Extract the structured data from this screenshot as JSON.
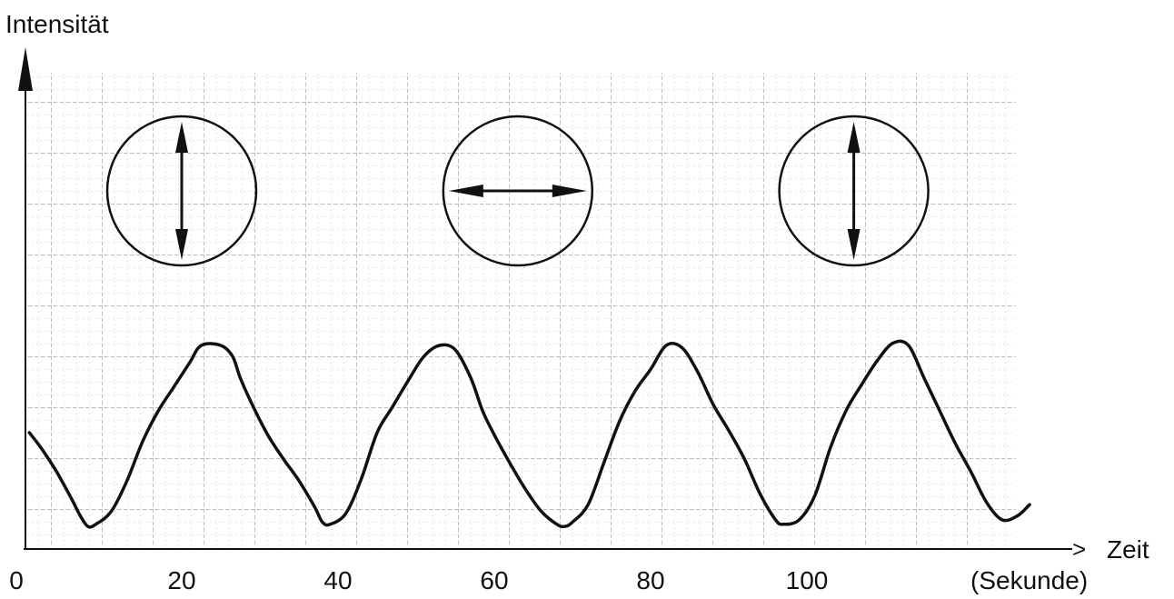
{
  "chart_data": {
    "type": "line",
    "title": "",
    "ylabel": "Intensität",
    "xlabel": "Zeit",
    "xunit": "(Sekunde)",
    "xticks": [
      0,
      20,
      40,
      60,
      80,
      100
    ],
    "xlim": [
      0,
      130
    ],
    "ylim": [
      0,
      1
    ],
    "grid": true,
    "series": [
      {
        "x": [
          0.5,
          2,
          4,
          6,
          7,
          8,
          9,
          11,
          13,
          15,
          17,
          19,
          21,
          22.5,
          25,
          26.5,
          27.5,
          29,
          31,
          33,
          35,
          37,
          38,
          39,
          41,
          43,
          45,
          47,
          49,
          51,
          53,
          55,
          57,
          58.5,
          60,
          62,
          64,
          66,
          68,
          69,
          70,
          72,
          74,
          76,
          78,
          80,
          82,
          84,
          86,
          88,
          90,
          92,
          94,
          96,
          97,
          99,
          101,
          103,
          105,
          107,
          109,
          111,
          113,
          115,
          117,
          119,
          121,
          123,
          125,
          127,
          128.5
        ],
        "y": [
          0.45,
          0.38,
          0.27,
          0.14,
          0.07,
          0.02,
          0.03,
          0.09,
          0.23,
          0.41,
          0.55,
          0.66,
          0.77,
          0.85,
          0.85,
          0.8,
          0.7,
          0.58,
          0.44,
          0.33,
          0.23,
          0.11,
          0.04,
          0.03,
          0.08,
          0.24,
          0.45,
          0.57,
          0.69,
          0.8,
          0.85,
          0.83,
          0.7,
          0.55,
          0.44,
          0.31,
          0.19,
          0.09,
          0.03,
          0.02,
          0.04,
          0.12,
          0.31,
          0.5,
          0.64,
          0.74,
          0.85,
          0.84,
          0.73,
          0.58,
          0.46,
          0.33,
          0.17,
          0.05,
          0.03,
          0.05,
          0.16,
          0.38,
          0.55,
          0.67,
          0.78,
          0.86,
          0.85,
          0.7,
          0.55,
          0.4,
          0.27,
          0.13,
          0.05,
          0.07,
          0.12
        ]
      }
    ],
    "annotations": [
      {
        "type": "circle-arrow",
        "direction": "vertical",
        "x": 20
      },
      {
        "type": "circle-arrow",
        "direction": "horizontal",
        "x": 63
      },
      {
        "type": "circle-arrow",
        "direction": "vertical",
        "x": 106
      }
    ]
  }
}
